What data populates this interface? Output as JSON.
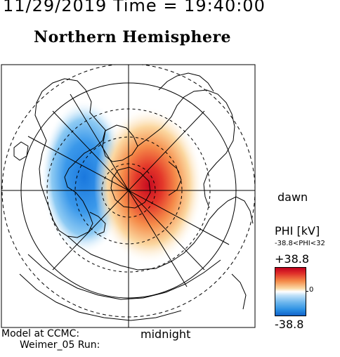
{
  "header": {
    "date_time": "11/29/2019 Time = 19:40:00",
    "title": "Northern Hemisphere"
  },
  "orientation": {
    "dawn": "dawn",
    "midnight": "midnight"
  },
  "footer": {
    "model_line": "Model at CCMC:",
    "run_line": "Weimer_05 Run:"
  },
  "colorbar": {
    "title": "PHI [kV]",
    "range_text": "-38.8<PHI<32",
    "max_label": "+38.8",
    "zero_label": "0",
    "min_label": "-38.8",
    "max_value": 38.8,
    "min_value": -38.8,
    "high_color": "#c1001c",
    "low_color": "#1262c8"
  },
  "map": {
    "projection": "polar",
    "grid_colatitudes_deg": [
      10,
      20,
      30,
      40
    ],
    "outer_circle": "solid",
    "inner_circles": "dashed",
    "meridian_lines": 6
  }
}
